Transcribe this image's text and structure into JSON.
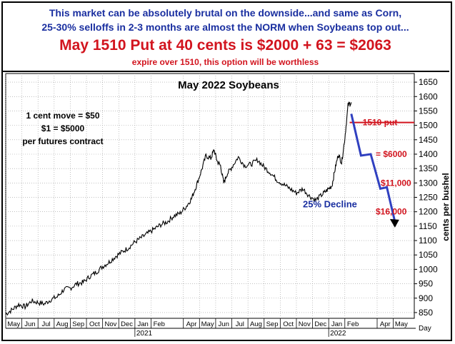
{
  "header": {
    "line1": "This market can be absolutely brutal on the downside...and same as Corn,",
    "line2": "25-30% selloffs in 2-3 months are almost the NORM when Soybeans top out...",
    "headline": "May 1510 Put at 40 cents is $2000 + 63 = $2063",
    "subline": "expire over 1510, this option will be worthless"
  },
  "chart_data": {
    "type": "line",
    "title": "May 2022 Soybeans",
    "ylabel": "cents per bushel",
    "ylim": [
      830,
      1680
    ],
    "yticks": [
      850,
      900,
      950,
      1000,
      1050,
      1100,
      1150,
      1200,
      1250,
      1300,
      1350,
      1400,
      1450,
      1500,
      1550,
      1600,
      1650
    ],
    "xlim": [
      0,
      25.3
    ],
    "xticks": [
      {
        "label": "May",
        "pos": 0.5
      },
      {
        "label": "Jun",
        "pos": 1.5
      },
      {
        "label": "Jul",
        "pos": 2.5
      },
      {
        "label": "Aug",
        "pos": 3.5
      },
      {
        "label": "Sep",
        "pos": 4.5
      },
      {
        "label": "Oct",
        "pos": 5.5
      },
      {
        "label": "Nov",
        "pos": 6.5
      },
      {
        "label": "Dec",
        "pos": 7.5
      },
      {
        "label": "Jan",
        "pos": 8.5
      },
      {
        "label": "Feb",
        "pos": 9.5
      },
      {
        "label": "Apr",
        "pos": 11.5
      },
      {
        "label": "May",
        "pos": 12.5
      },
      {
        "label": "Jun",
        "pos": 13.5
      },
      {
        "label": "Jul",
        "pos": 14.5
      },
      {
        "label": "Aug",
        "pos": 15.5
      },
      {
        "label": "Sep",
        "pos": 16.5
      },
      {
        "label": "Oct",
        "pos": 17.5
      },
      {
        "label": "Nov",
        "pos": 18.5
      },
      {
        "label": "Dec",
        "pos": 19.5
      },
      {
        "label": "Jan",
        "pos": 20.5
      },
      {
        "label": "Feb",
        "pos": 21.5
      },
      {
        "label": "Apr",
        "pos": 23.5
      },
      {
        "label": "May",
        "pos": 24.5
      }
    ],
    "year_labels": [
      {
        "label": "2021",
        "pos": 8
      },
      {
        "label": "2022",
        "pos": 20
      }
    ],
    "x_unit_label": "Day",
    "series": [
      {
        "x": [
          0.0,
          0.4,
          0.8,
          1.2,
          1.6,
          2.0,
          2.4,
          2.8,
          3.2,
          3.6,
          4.0,
          4.4,
          4.8,
          5.2,
          5.6,
          6.0,
          6.4,
          6.8,
          7.2,
          7.6,
          8.0,
          8.4,
          8.8,
          9.2,
          9.6,
          10.0,
          10.4,
          10.8,
          11.2,
          11.5,
          11.8,
          12.1,
          12.4,
          12.7,
          12.9,
          13.1,
          13.3,
          13.5,
          13.7,
          14.0,
          14.4,
          14.8,
          15.2,
          15.6,
          16.0,
          16.4,
          16.8,
          17.2,
          17.6,
          18.0,
          18.4,
          18.8,
          19.2,
          19.6,
          19.9,
          20.2,
          20.4,
          20.6,
          20.8,
          21.0,
          21.2,
          21.4
        ],
        "y": [
          845,
          860,
          878,
          870,
          890,
          885,
          880,
          895,
          905,
          930,
          935,
          950,
          955,
          975,
          990,
          1010,
          1025,
          1045,
          1060,
          1075,
          1095,
          1110,
          1125,
          1140,
          1155,
          1165,
          1185,
          1195,
          1220,
          1245,
          1290,
          1340,
          1395,
          1385,
          1415,
          1375,
          1360,
          1300,
          1330,
          1355,
          1390,
          1360,
          1365,
          1380,
          1355,
          1335,
          1310,
          1295,
          1280,
          1265,
          1280,
          1255,
          1240,
          1260,
          1275,
          1290,
          1350,
          1400,
          1370,
          1455,
          1570,
          1580
        ]
      }
    ],
    "projection": {
      "x": [
        21.4,
        22.0,
        22.6,
        23.2,
        23.6,
        24.1
      ],
      "y": [
        1540,
        1395,
        1400,
        1280,
        1285,
        1165
      ]
    },
    "reference_line": {
      "value": 1510,
      "label": "1510 put"
    },
    "annotations": [
      {
        "text": "1 cent move = $50"
      },
      {
        "text": "$1 = $5000"
      },
      {
        "text": "per futures contract"
      },
      {
        "text": "= $6000",
        "y": 1400
      },
      {
        "text": "$11,000",
        "y": 1300
      },
      {
        "text": "$16,000",
        "y": 1200
      },
      {
        "text": "25% Decline",
        "y": 1225
      }
    ],
    "colors": {
      "price": "#000000",
      "projection": "#3040c0",
      "reference": "#d2141e",
      "loss": "#d2141e",
      "decline": "#1a2fa0",
      "grid": "#9a9a9a"
    },
    "grid": true
  }
}
